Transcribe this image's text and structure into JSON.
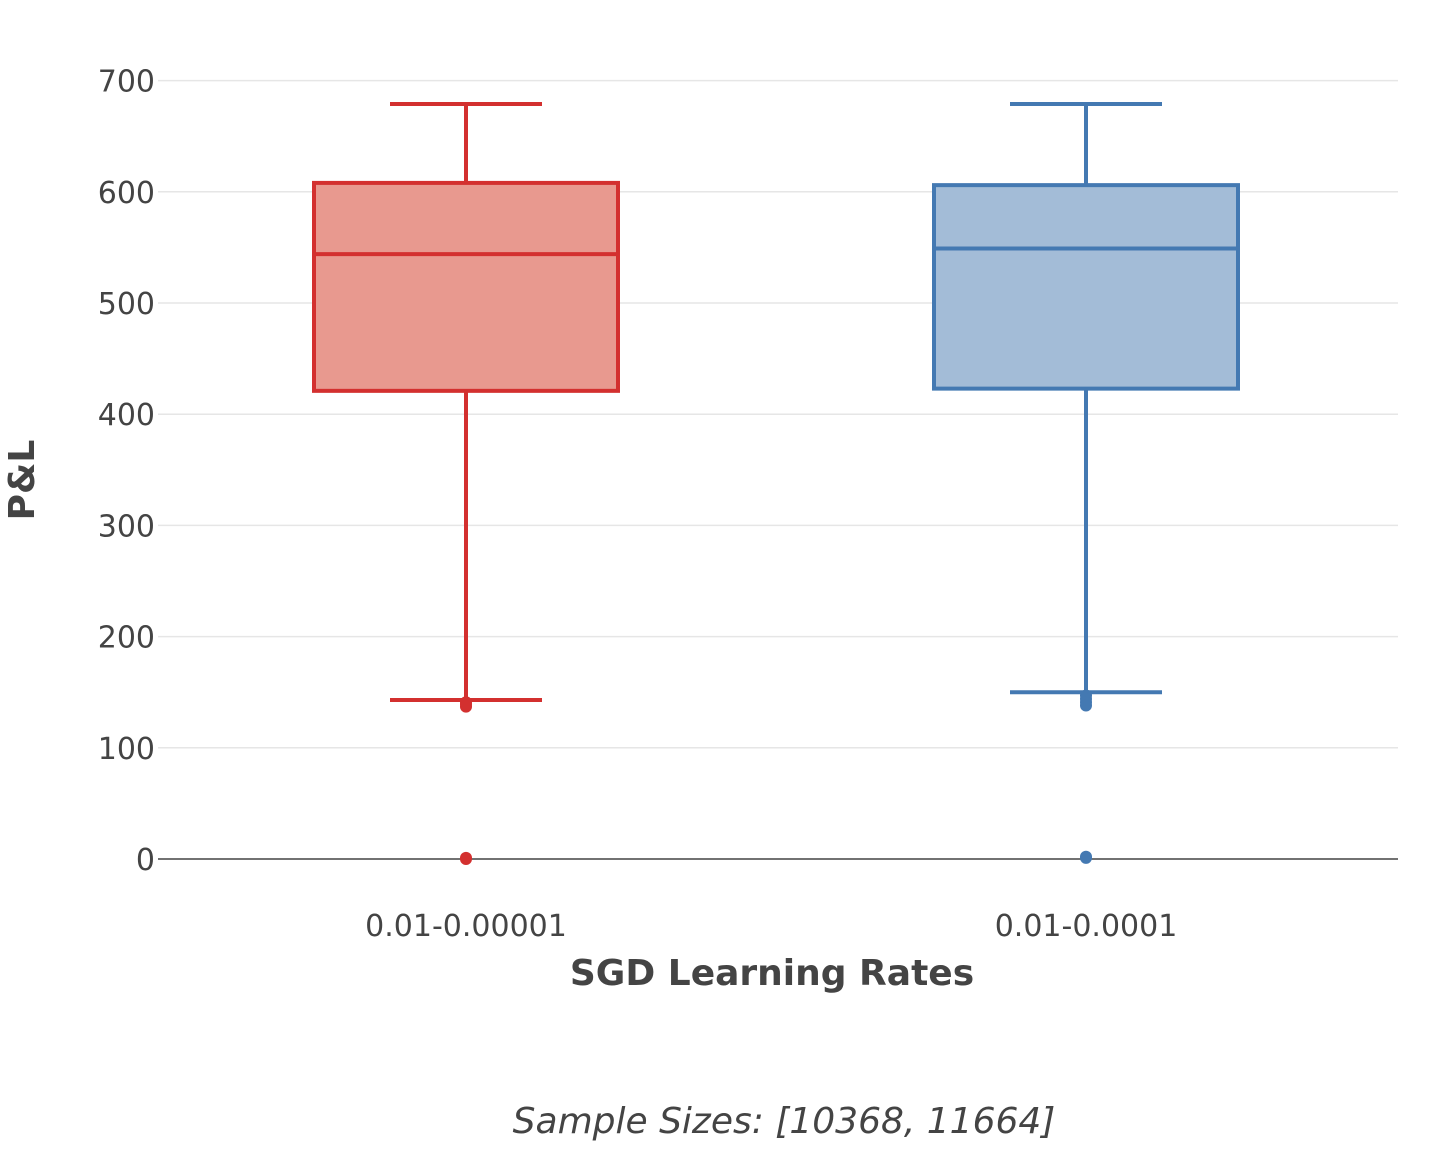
{
  "chart_data": {
    "type": "box",
    "title": "",
    "xlabel": "SGD Learning Rates",
    "ylabel": "P&L",
    "ylim": [
      -10,
      720
    ],
    "yticks": [
      0,
      100,
      200,
      300,
      400,
      500,
      600,
      700
    ],
    "grid": true,
    "annotation": "Sample Sizes: [10368, 11664]",
    "categories": [
      "0.01-0.00001",
      "0.01-0.0001"
    ],
    "series": [
      {
        "category": "0.01-0.00001",
        "color": "#d3302f",
        "fill": "#e8998f",
        "q1": 421,
        "median": 544,
        "q3": 608,
        "whisker_low": 143,
        "whisker_high": 679,
        "outliers": [
          141,
          139,
          137,
          1,
          0
        ]
      },
      {
        "category": "0.01-0.0001",
        "color": "#4479b2",
        "fill": "#a3bcd7",
        "q1": 423,
        "median": 549,
        "q3": 606,
        "whisker_low": 150,
        "whisker_high": 679,
        "outliers": [
          147,
          144,
          141,
          138,
          2,
          1
        ]
      }
    ]
  }
}
